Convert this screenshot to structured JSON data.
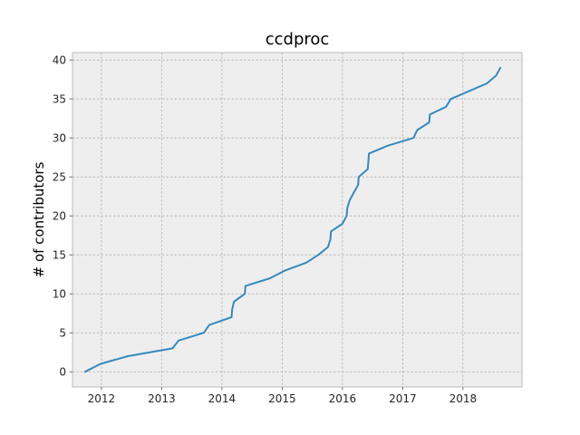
{
  "chart_data": {
    "type": "line",
    "title": "ccdproc",
    "xlabel": "",
    "ylabel": "# of contributors",
    "xlim": [
      2011.52,
      2018.98
    ],
    "ylim": [
      -1.95,
      40.95
    ],
    "xticks": [
      2012,
      2013,
      2014,
      2015,
      2016,
      2017,
      2018
    ],
    "xtick_labels": [
      "2012",
      "2013",
      "2014",
      "2015",
      "2016",
      "2017",
      "2018"
    ],
    "yticks": [
      0,
      5,
      10,
      15,
      20,
      25,
      30,
      35,
      40
    ],
    "ytick_labels": [
      "0",
      "5",
      "10",
      "15",
      "20",
      "25",
      "30",
      "35",
      "40"
    ],
    "grid": true,
    "background": "#eeeeee",
    "grid_color": "#b2b2b2",
    "series": [
      {
        "color": "#348abd",
        "x": [
          2011.73,
          2011.98,
          2012.44,
          2013.18,
          2013.28,
          2013.7,
          2013.79,
          2014.16,
          2014.17,
          2014.2,
          2014.38,
          2014.39,
          2014.8,
          2015.05,
          2015.4,
          2015.6,
          2015.76,
          2015.8,
          2015.81,
          2016.0,
          2016.07,
          2016.08,
          2016.12,
          2016.26,
          2016.27,
          2016.42,
          2016.43,
          2016.44,
          2016.75,
          2017.18,
          2017.24,
          2017.44,
          2017.45,
          2017.72,
          2017.8,
          2018.1,
          2018.4,
          2018.55,
          2018.62
        ],
        "y": [
          0,
          1,
          2,
          3,
          4,
          5,
          6,
          7,
          8,
          9,
          10,
          11,
          12,
          13,
          14,
          15,
          16,
          17,
          18,
          19,
          20,
          21,
          22,
          24,
          25,
          26,
          27,
          28,
          29,
          30,
          31,
          32,
          33,
          34,
          35,
          36,
          37,
          38,
          39
        ]
      }
    ]
  }
}
